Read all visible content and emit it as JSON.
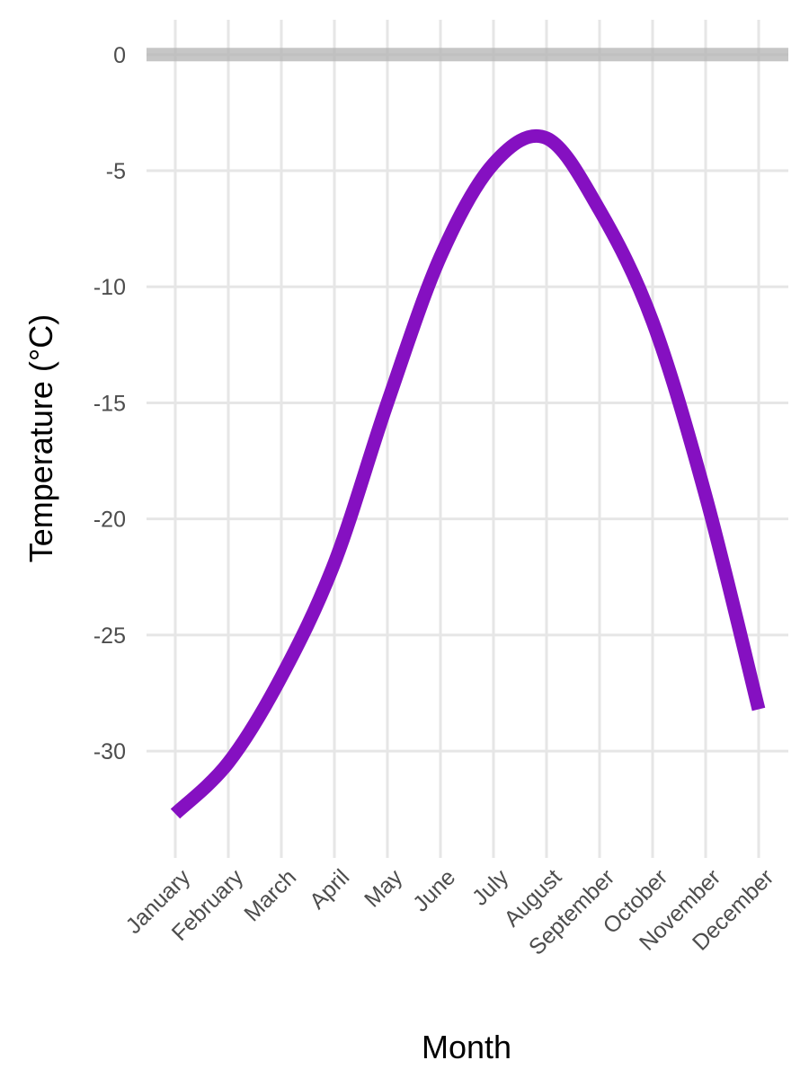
{
  "chart_data": {
    "type": "line",
    "title": "",
    "xlabel": "Month",
    "ylabel": "Temperature (°C)",
    "categories": [
      "January",
      "February",
      "March",
      "April",
      "May",
      "June",
      "July",
      "August",
      "September",
      "October",
      "November",
      "December"
    ],
    "series": [
      {
        "values": [
          -32.7,
          -30.5,
          -26.8,
          -21.9,
          -15.0,
          -8.7,
          -4.7,
          -3.6,
          -6.7,
          -11.5,
          -19.0,
          -28.2
        ]
      }
    ],
    "ylim": [
      -34.6,
      1.5
    ],
    "yticks": [
      0,
      -5,
      -10,
      -15,
      -20,
      -25,
      -30
    ],
    "grid": true,
    "reference_line": {
      "value": 0
    },
    "colors": {
      "line": "#8510C1",
      "grid": "#e6e6e6",
      "reference_line": "#b3b3b3"
    }
  }
}
